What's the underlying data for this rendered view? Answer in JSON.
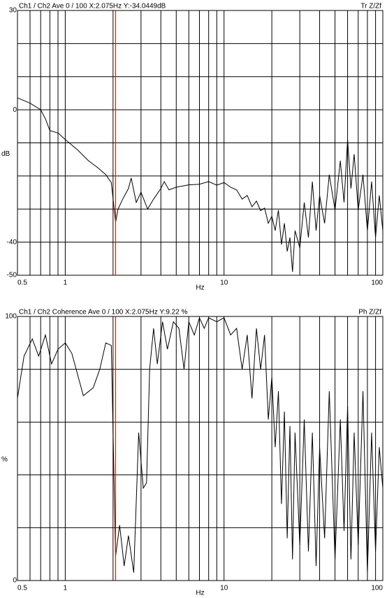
{
  "chart_data": [
    {
      "type": "line",
      "title": "Ch1 / Ch2  Ave 0 / 100  X:2.075Hz  Y:-34.0449dB",
      "mode_label": "Tr Z/Zf",
      "xlabel": "Hz",
      "ylabel": "dB",
      "log_x": true,
      "grid": true,
      "xlim": [
        0.5,
        100
      ],
      "ylim": [
        -50,
        30
      ],
      "xticks": [
        0.5,
        {
          "value": 0.6,
          "label": null
        },
        {
          "value": 0.7,
          "label": null
        },
        {
          "value": 0.8,
          "label": null
        },
        {
          "value": 0.9,
          "label": null
        },
        1,
        {
          "value": 2,
          "label": null
        },
        {
          "value": 3,
          "label": null
        },
        {
          "value": 4,
          "label": null
        },
        {
          "value": 5,
          "label": null
        },
        {
          "value": 6,
          "label": null
        },
        {
          "value": 7,
          "label": null
        },
        {
          "value": 8,
          "label": null
        },
        {
          "value": 9,
          "label": null
        },
        10,
        {
          "value": 20,
          "label": null
        },
        {
          "value": 30,
          "label": null
        },
        {
          "value": 40,
          "label": null
        },
        {
          "value": 50,
          "label": null
        },
        {
          "value": 60,
          "label": null
        },
        {
          "value": 70,
          "label": null
        },
        {
          "value": 80,
          "label": null
        },
        {
          "value": 90,
          "label": null
        },
        100
      ],
      "yticks": [
        -50,
        -40,
        {
          "value": -30,
          "label": null
        },
        {
          "value": -20,
          "label": null
        },
        {
          "value": -10,
          "label": null
        },
        0,
        {
          "value": 10,
          "label": null
        },
        {
          "value": 20,
          "label": null
        },
        30
      ],
      "cursor_x": 2.075,
      "cursor_color": "#cc2200",
      "color": "#000000",
      "x": [
        0.5,
        0.6,
        0.7,
        0.75,
        0.8,
        0.9,
        1.0,
        1.2,
        1.4,
        1.6,
        1.8,
        1.95,
        2.075,
        2.15,
        2.3,
        2.5,
        2.6,
        2.8,
        3.0,
        3.3,
        3.6,
        4.0,
        4.2,
        4.5,
        5,
        6,
        7,
        8,
        9,
        10,
        11,
        12,
        13,
        14,
        15,
        16,
        17,
        18,
        19,
        20,
        21,
        22,
        23,
        24,
        25,
        26,
        27,
        28,
        30,
        32,
        34,
        36,
        38,
        40,
        43,
        46,
        50,
        54,
        57,
        60,
        63,
        66,
        70,
        75,
        80,
        85,
        90,
        95,
        100
      ],
      "values": [
        3.6,
        2,
        0,
        -2.7,
        -6.3,
        -7,
        -9,
        -12.2,
        -15.4,
        -17.5,
        -19.6,
        -22,
        -34,
        -30,
        -27,
        -23.8,
        -20.6,
        -28,
        -24.9,
        -30,
        -27,
        -23.8,
        -21.7,
        -24.2,
        -23.4,
        -22.7,
        -22.5,
        -21.7,
        -22.8,
        -22,
        -23.4,
        -24.2,
        -27,
        -25.9,
        -29.3,
        -27.6,
        -30.5,
        -29.7,
        -34.3,
        -32.2,
        -36.5,
        -30.3,
        -40.7,
        -34.3,
        -42.8,
        -38.6,
        -49,
        -36.5,
        -41.7,
        -28,
        -38.6,
        -21.7,
        -36.5,
        -25.9,
        -34.3,
        -19.6,
        -30.3,
        -15.4,
        -28,
        -9,
        -23.8,
        -13.4,
        -30.3,
        -19.6,
        -36.5,
        -21.7,
        -38.6,
        -25.9,
        -36.5
      ]
    },
    {
      "type": "line",
      "title": "Ch1 / Ch2  Coherence Ave 0 / 100  X:2.075Hz  Y:9.22 %",
      "mode_label": "Ph Z/Zf",
      "xlabel": "Hz",
      "ylabel": "%",
      "log_x": true,
      "grid": true,
      "xlim": [
        0.5,
        100
      ],
      "ylim": [
        0,
        100
      ],
      "xticks": [
        0.5,
        {
          "value": 0.6,
          "label": null
        },
        {
          "value": 0.7,
          "label": null
        },
        {
          "value": 0.8,
          "label": null
        },
        {
          "value": 0.9,
          "label": null
        },
        1,
        {
          "value": 2,
          "label": null
        },
        {
          "value": 3,
          "label": null
        },
        {
          "value": 4,
          "label": null
        },
        {
          "value": 5,
          "label": null
        },
        {
          "value": 6,
          "label": null
        },
        {
          "value": 7,
          "label": null
        },
        {
          "value": 8,
          "label": null
        },
        {
          "value": 9,
          "label": null
        },
        10,
        {
          "value": 20,
          "label": null
        },
        {
          "value": 30,
          "label": null
        },
        {
          "value": 40,
          "label": null
        },
        {
          "value": 50,
          "label": null
        },
        {
          "value": 60,
          "label": null
        },
        {
          "value": 70,
          "label": null
        },
        {
          "value": 80,
          "label": null
        },
        {
          "value": 90,
          "label": null
        },
        100
      ],
      "yticks": [
        0,
        {
          "value": 20,
          "label": null
        },
        {
          "value": 40,
          "label": null
        },
        {
          "value": 60,
          "label": null
        },
        {
          "value": 80,
          "label": null
        },
        100
      ],
      "cursor_x": 2.075,
      "cursor_color": "#cc2200",
      "color": "#000000",
      "x": [
        0.5,
        0.55,
        0.62,
        0.68,
        0.75,
        0.82,
        0.9,
        1.0,
        1.1,
        1.3,
        1.5,
        1.65,
        1.8,
        1.95,
        2.075,
        2.2,
        2.35,
        2.5,
        2.7,
        2.9,
        3.1,
        3.25,
        3.4,
        3.6,
        3.8,
        4.1,
        4.4,
        4.8,
        5.2,
        5.6,
        6.0,
        6.5,
        7,
        7.5,
        8,
        9,
        10,
        11,
        12,
        13,
        14,
        15,
        16,
        17,
        18,
        19,
        20,
        21,
        22,
        23,
        24,
        25,
        26,
        27,
        28,
        30,
        32,
        34,
        36,
        38,
        40,
        43,
        46,
        50,
        54,
        57,
        60,
        63,
        66,
        70,
        75,
        80,
        85,
        90,
        95,
        100
      ],
      "values": [
        69,
        85,
        91.5,
        85,
        93,
        82,
        87.6,
        90,
        86,
        70,
        73,
        80,
        90,
        89,
        9.2,
        21,
        5.5,
        17,
        3,
        56,
        35,
        37,
        80,
        95.5,
        82,
        98,
        87.6,
        98,
        95.5,
        80,
        98,
        93,
        99.5,
        95.5,
        99.5,
        98,
        99.5,
        93,
        95.5,
        80,
        93,
        69,
        95.5,
        80,
        93,
        61,
        77,
        50.5,
        71.7,
        29,
        64,
        16,
        58.5,
        8,
        56,
        13.5,
        61,
        11,
        56,
        5.5,
        50.5,
        16,
        71.7,
        8,
        61,
        18.8,
        66,
        8,
        56,
        13.5,
        71.7,
        3,
        56,
        11,
        50.5,
        35
      ]
    }
  ]
}
